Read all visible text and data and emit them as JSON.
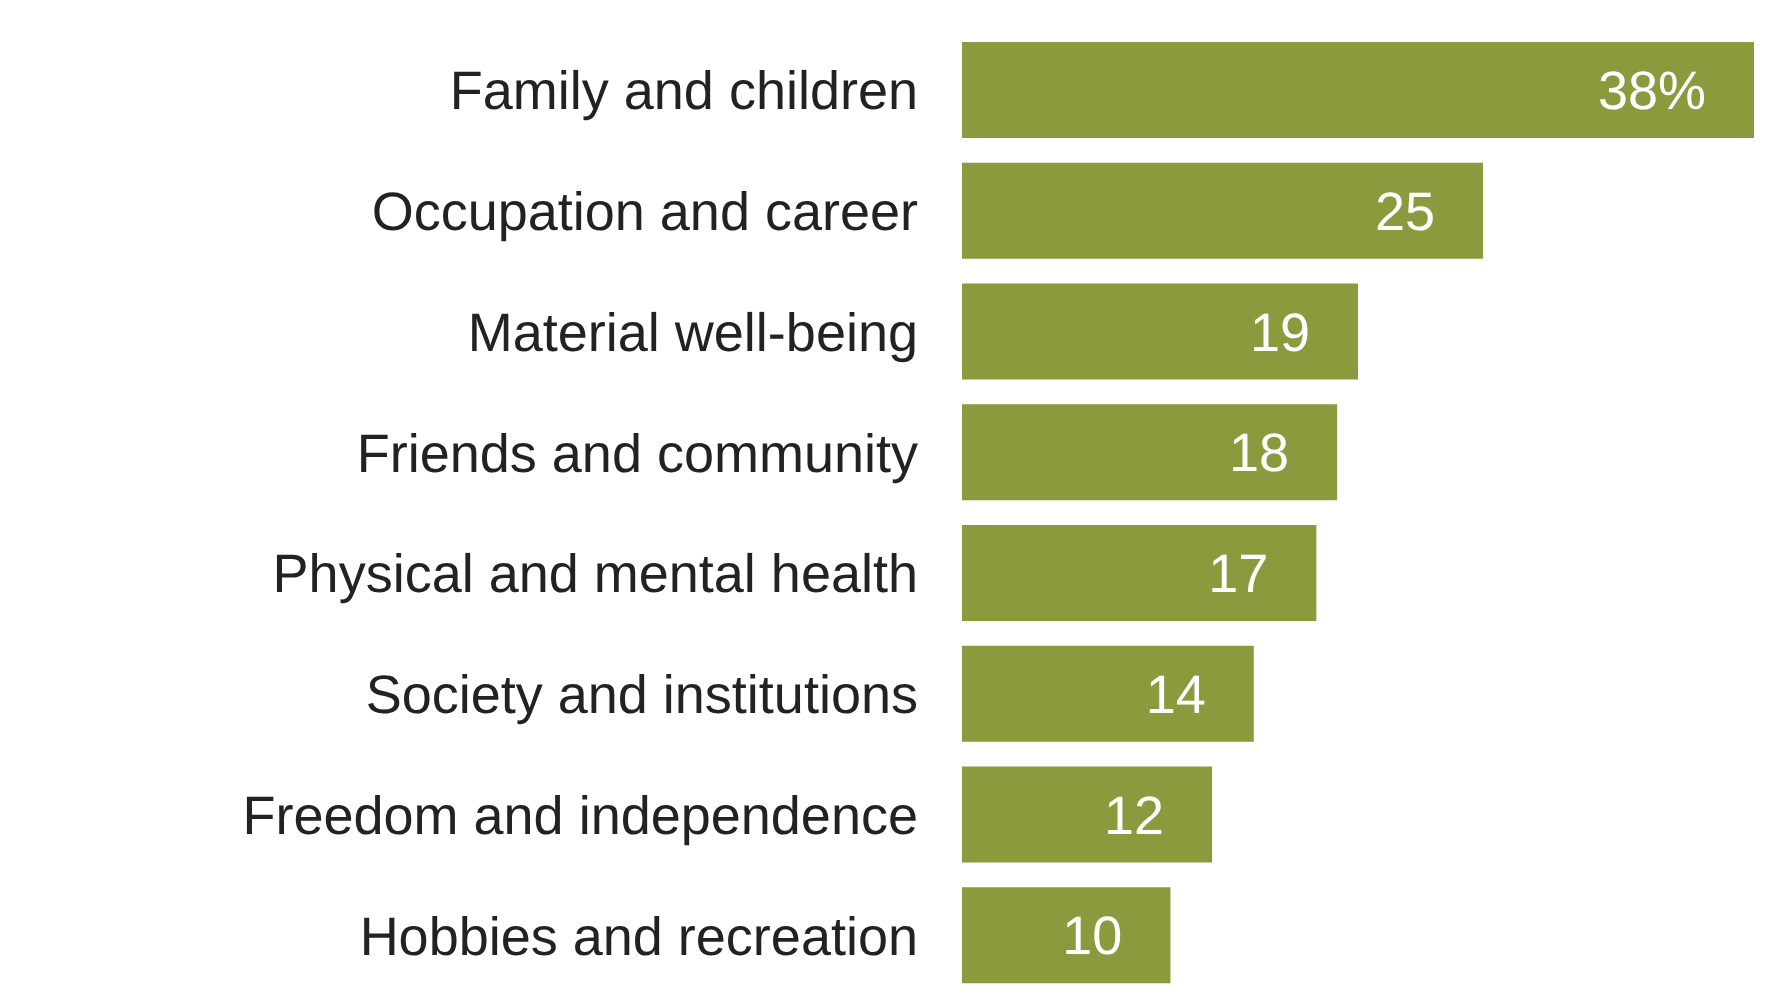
{
  "chart_data": {
    "type": "bar",
    "orientation": "horizontal",
    "categories": [
      "Family and children",
      "Occupation and career",
      "Material well-being",
      "Friends and community",
      "Physical and mental health",
      "Society and institutions",
      "Freedom and independence",
      "Hobbies and recreation"
    ],
    "values": [
      38,
      25,
      19,
      18,
      17,
      14,
      12,
      10
    ],
    "value_labels": [
      "38%",
      "25",
      "19",
      "18",
      "17",
      "14",
      "12",
      "10"
    ],
    "color": "#8b9a3c",
    "grid": false,
    "legend": false
  }
}
